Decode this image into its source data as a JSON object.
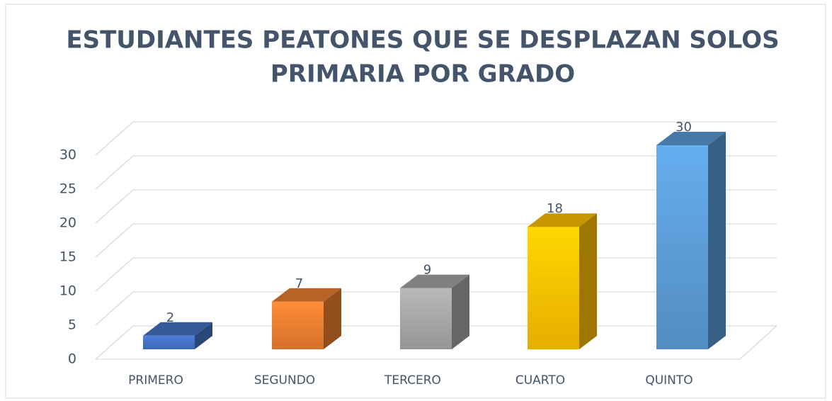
{
  "chart_data": {
    "type": "bar3d",
    "title": [
      "ESTUDIANTES PEATONES QUE SE DESPLAZAN SOLOS",
      "PRIMARIA POR GRADO"
    ],
    "categories": [
      "PRIMERO",
      "SEGUNDO",
      "TERCERO",
      "CUARTO",
      "QUINTO"
    ],
    "values": [
      2,
      7,
      9,
      18,
      30
    ],
    "colors": [
      "#4472c4",
      "#ed7d31",
      "#a5a5a5",
      "#ffc000",
      "#5b9bd5"
    ],
    "ylim": [
      0,
      30
    ],
    "yticks": [
      0,
      5,
      10,
      15,
      20,
      25,
      30
    ],
    "grid": true
  }
}
